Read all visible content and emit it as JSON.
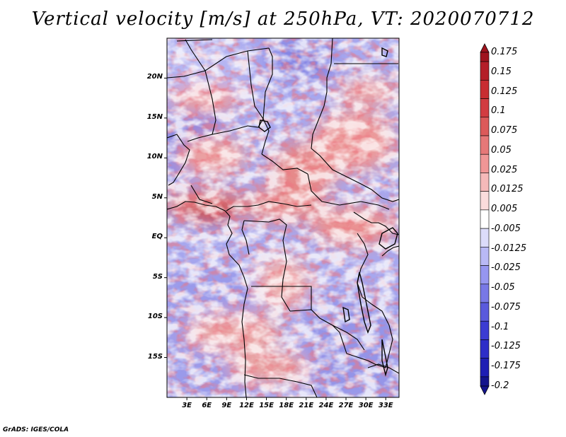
{
  "title": "Vertical velocity [m/s] at 250hPa, VT: 2020070712",
  "credit": "GrADS: IGES/COLA",
  "map": {
    "lat_range": [
      -20,
      25
    ],
    "lon_range": [
      0,
      35
    ],
    "lat_labels": [
      "20N",
      "15N",
      "10N",
      "5N",
      "EQ",
      "5S",
      "10S",
      "15S"
    ],
    "lon_labels": [
      "3E",
      "6E",
      "9E",
      "12E",
      "15E",
      "18E",
      "21E",
      "24E",
      "27E",
      "30E",
      "33E"
    ]
  },
  "colorbar": {
    "labels": [
      "0.175",
      "0.15",
      "0.125",
      "0.1",
      "0.075",
      "0.05",
      "0.025",
      "0.0125",
      "0.005",
      "-0.005",
      "-0.0125",
      "-0.025",
      "-0.05",
      "-0.075",
      "-0.1",
      "-0.125",
      "-0.175",
      "-0.2"
    ],
    "colors": [
      "#a0141e",
      "#b41e28",
      "#c82d32",
      "#d23c41",
      "#dc5a5a",
      "#e67878",
      "#f09696",
      "#f5b9b9",
      "#fadcdc",
      "#ffffff",
      "#dcdcfa",
      "#b9b9f5",
      "#9696f0",
      "#7878e6",
      "#5a5adc",
      "#3c3cd2",
      "#2d2dc8",
      "#1e1eb4",
      "#14148c"
    ]
  }
}
